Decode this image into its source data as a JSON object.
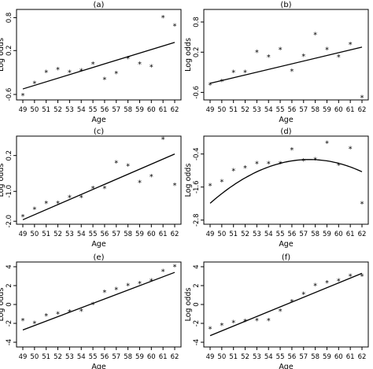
{
  "chart_data": [
    {
      "type": "scatter",
      "title": "(a)",
      "xlabel": "Age",
      "ylabel": "Log odds",
      "x": [
        49,
        50,
        51,
        52,
        53,
        54,
        55,
        56,
        57,
        58,
        59,
        60,
        61,
        62
      ],
      "y": [
        -0.62,
        -0.4,
        -0.2,
        -0.15,
        -0.2,
        -0.17,
        -0.05,
        -0.33,
        -0.22,
        0.05,
        -0.05,
        -0.1,
        0.8,
        0.65
      ],
      "fit": {
        "kind": "linear",
        "x": [
          49,
          62
        ],
        "y": [
          -0.5,
          0.35
        ]
      },
      "xlim": [
        49,
        62
      ],
      "ylim": [
        -0.7,
        0.95
      ],
      "yticks": [
        -0.6,
        0.2,
        0.8
      ],
      "ytick_labels": [
        "-0.6",
        "0.2",
        "0.8"
      ],
      "xticks": [
        49,
        50,
        51,
        52,
        53,
        54,
        55,
        56,
        57,
        58,
        59,
        60,
        61,
        62
      ],
      "xtick_labels": [
        "49",
        "50",
        "51",
        "52",
        "53",
        "54",
        "55",
        "56",
        "57",
        "58",
        "59",
        "60",
        "61",
        "62"
      ]
    },
    {
      "type": "scatter",
      "title": "(b)",
      "xlabel": "Age",
      "ylabel": "Log odds",
      "x": [
        49,
        50,
        51,
        52,
        53,
        54,
        55,
        56,
        57,
        58,
        59,
        60,
        61,
        62
      ],
      "y": [
        -0.45,
        -0.38,
        -0.2,
        -0.2,
        0.2,
        0.1,
        0.25,
        -0.18,
        0.12,
        0.55,
        0.25,
        0.1,
        0.35,
        -0.7
      ],
      "fit": {
        "kind": "linear",
        "x": [
          49,
          62
        ],
        "y": [
          -0.42,
          0.3
        ]
      },
      "xlim": [
        49,
        62
      ],
      "ylim": [
        -0.75,
        1.05
      ],
      "yticks": [
        -0.6,
        0.2,
        0.8
      ],
      "ytick_labels": [
        "-0.6",
        "0.2",
        "0.8"
      ],
      "xticks": [
        49,
        50,
        51,
        52,
        53,
        54,
        55,
        56,
        57,
        58,
        59,
        60,
        61,
        62
      ],
      "xtick_labels": [
        "49",
        "50",
        "51",
        "52",
        "53",
        "54",
        "55",
        "56",
        "57",
        "58",
        "59",
        "60",
        "61",
        "62"
      ]
    },
    {
      "type": "scatter",
      "title": "(c)",
      "xlabel": "Age",
      "ylabel": "Log odds",
      "x": [
        49,
        50,
        51,
        52,
        53,
        54,
        55,
        56,
        57,
        58,
        59,
        60,
        61,
        62
      ],
      "y": [
        -1.85,
        -1.6,
        -1.4,
        -1.4,
        -1.2,
        -1.2,
        -0.9,
        -0.9,
        -0.05,
        -0.15,
        -0.7,
        -0.5,
        0.75,
        -0.8
      ],
      "fit": {
        "kind": "linear",
        "x": [
          49,
          62
        ],
        "y": [
          -1.95,
          0.25
        ]
      },
      "xlim": [
        49,
        62
      ],
      "ylim": [
        -2.1,
        0.85
      ],
      "yticks": [
        -2.0,
        -1.0,
        0.2
      ],
      "ytick_labels": [
        "-2.0",
        "-1.0",
        "0.2"
      ],
      "xticks": [
        49,
        50,
        51,
        52,
        53,
        54,
        55,
        56,
        57,
        58,
        59,
        60,
        61,
        62
      ],
      "xtick_labels": [
        "49",
        "50",
        "51",
        "52",
        "53",
        "54",
        "55",
        "56",
        "57",
        "58",
        "59",
        "60",
        "61",
        "62"
      ]
    },
    {
      "type": "scatter",
      "title": "(d)",
      "xlabel": "Age",
      "ylabel": "Log odds",
      "x": [
        49,
        50,
        51,
        52,
        53,
        54,
        55,
        56,
        57,
        58,
        59,
        60,
        61,
        62
      ],
      "y": [
        -1.55,
        -1.4,
        -1.0,
        -0.9,
        -0.75,
        -0.75,
        -0.75,
        -0.25,
        -0.65,
        -0.6,
        0.0,
        -0.8,
        -0.2,
        -2.2
      ],
      "fit": {
        "kind": "quadratic",
        "coef": [
          -0.022,
          57.5,
          -0.6
        ]
      },
      "xlim": [
        49,
        62
      ],
      "ylim": [
        -2.95,
        0.25
      ],
      "yticks": [
        -2.8,
        -1.6,
        -0.4
      ],
      "ytick_labels": [
        "-2.8",
        "-1.6",
        "-0.4"
      ],
      "xticks": [
        49,
        50,
        51,
        52,
        53,
        54,
        55,
        56,
        57,
        58,
        59,
        60,
        61,
        62
      ],
      "xtick_labels": [
        "49",
        "50",
        "51",
        "52",
        "53",
        "54",
        "55",
        "56",
        "57",
        "58",
        "59",
        "60",
        "61",
        "62"
      ]
    },
    {
      "type": "scatter",
      "title": "(e)",
      "xlabel": "Age",
      "ylabel": "Log odds",
      "x": [
        49,
        50,
        51,
        52,
        53,
        54,
        55,
        56,
        57,
        58,
        59,
        60,
        61,
        62
      ],
      "y": [
        -1.7,
        -2.0,
        -1.2,
        -1.0,
        -0.8,
        -0.7,
        0.0,
        1.3,
        1.6,
        2.0,
        2.2,
        2.5,
        3.5,
        4.0
      ],
      "fit": {
        "kind": "linear",
        "x": [
          49,
          62
        ],
        "y": [
          -2.7,
          3.4
        ]
      },
      "xlim": [
        49,
        62
      ],
      "ylim": [
        -4.5,
        4.5
      ],
      "yticks": [
        -4,
        -2,
        0,
        2,
        4
      ],
      "ytick_labels": [
        "-4",
        "-2",
        "0",
        "2",
        "4"
      ],
      "xticks": [
        49,
        50,
        51,
        52,
        53,
        54,
        55,
        56,
        57,
        58,
        59,
        60,
        61,
        62
      ],
      "xtick_labels": [
        "49",
        "50",
        "51",
        "52",
        "53",
        "54",
        "55",
        "56",
        "57",
        "58",
        "59",
        "60",
        "61",
        "62"
      ]
    },
    {
      "type": "scatter",
      "title": "(f)",
      "xlabel": "Age",
      "ylabel": "Log odds",
      "x": [
        49,
        50,
        51,
        52,
        53,
        54,
        55,
        56,
        57,
        58,
        59,
        60,
        61,
        62
      ],
      "y": [
        -2.6,
        -2.2,
        -1.9,
        -1.8,
        -1.7,
        -1.7,
        -0.7,
        0.3,
        1.1,
        2.0,
        2.3,
        2.5,
        3.0,
        3.0
      ],
      "fit": {
        "kind": "linear",
        "x": [
          49,
          62
        ],
        "y": [
          -3.3,
          3.3
        ]
      },
      "xlim": [
        49,
        62
      ],
      "ylim": [
        -4.5,
        4.5
      ],
      "yticks": [
        -4,
        -2,
        0,
        2,
        4
      ],
      "ytick_labels": [
        "-4",
        "-2",
        "0",
        "2",
        "4"
      ],
      "xticks": [
        49,
        50,
        51,
        52,
        53,
        54,
        55,
        56,
        57,
        58,
        59,
        60,
        61,
        62
      ],
      "xtick_labels": [
        "49",
        "50",
        "51",
        "52",
        "53",
        "54",
        "55",
        "56",
        "57",
        "58",
        "59",
        "60",
        "61",
        "62"
      ]
    }
  ]
}
